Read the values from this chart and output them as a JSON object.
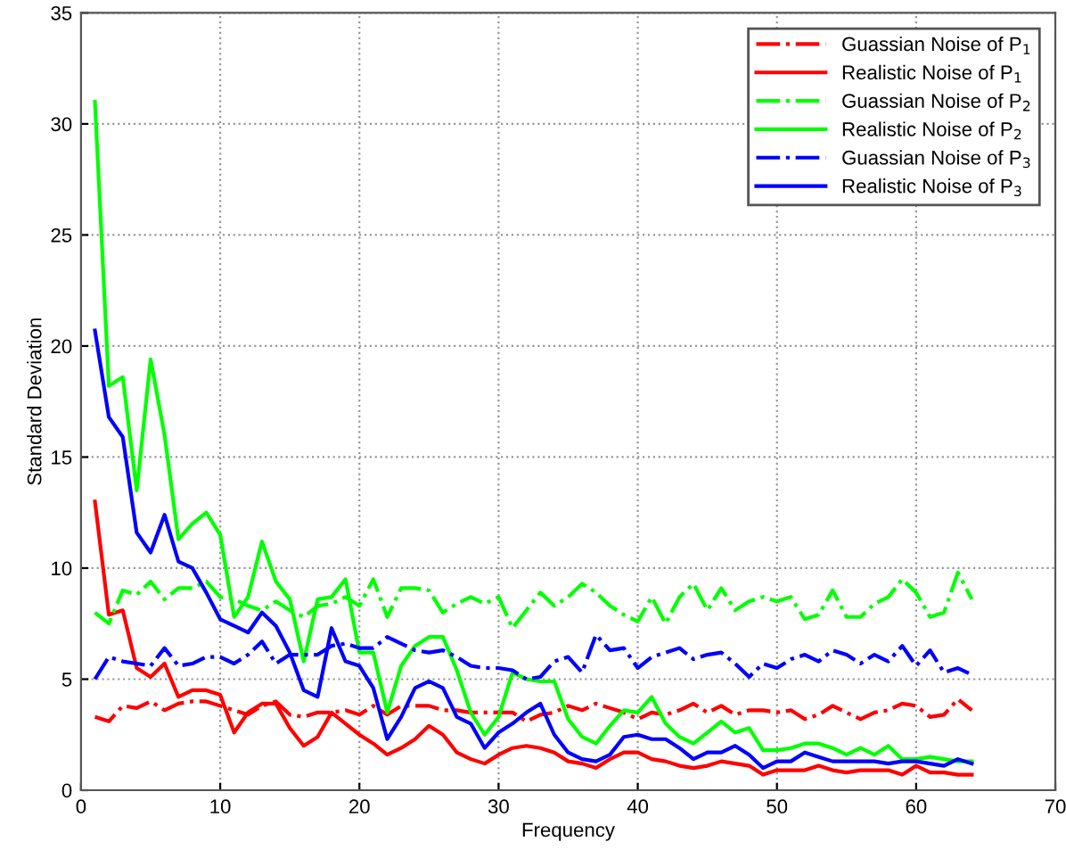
{
  "chart_data": {
    "type": "line",
    "xlabel": "Frequency",
    "ylabel": "Standard Deviation",
    "x": [
      1,
      2,
      3,
      4,
      5,
      6,
      7,
      8,
      9,
      10,
      11,
      12,
      13,
      14,
      15,
      16,
      17,
      18,
      19,
      20,
      21,
      22,
      23,
      24,
      25,
      26,
      27,
      28,
      29,
      30,
      31,
      32,
      33,
      34,
      35,
      36,
      37,
      38,
      39,
      40,
      41,
      42,
      43,
      44,
      45,
      46,
      47,
      48,
      49,
      50,
      51,
      52,
      53,
      54,
      55,
      56,
      57,
      58,
      59,
      60,
      61,
      62,
      63,
      64
    ],
    "xlim": [
      0,
      70
    ],
    "xticks": [
      0,
      10,
      20,
      30,
      40,
      50,
      60,
      70
    ],
    "ylim": [
      0,
      35
    ],
    "yticks": [
      0,
      5,
      10,
      15,
      20,
      25,
      30,
      35
    ],
    "grid": true,
    "legend": "top right",
    "marker": "none",
    "series": [
      {
        "name": "Guassian Noise of P$_{1}$",
        "color": "#ff0000",
        "line_style": "dashdot",
        "values": [
          3.3,
          3.1,
          3.8,
          3.7,
          4.0,
          3.6,
          3.9,
          4.0,
          4.0,
          3.8,
          3.6,
          3.4,
          3.8,
          4.0,
          3.4,
          3.3,
          3.5,
          3.5,
          3.6,
          3.4,
          3.8,
          3.4,
          3.8,
          3.8,
          3.8,
          3.6,
          3.6,
          3.5,
          3.5,
          3.5,
          3.5,
          3.1,
          3.4,
          3.5,
          3.8,
          3.6,
          3.9,
          3.7,
          3.5,
          3.2,
          3.5,
          3.4,
          3.6,
          3.9,
          3.5,
          3.8,
          3.4,
          3.6,
          3.6,
          3.5,
          3.6,
          3.2,
          3.4,
          3.8,
          3.5,
          3.2,
          3.5,
          3.6,
          3.9,
          3.8,
          3.3,
          3.4,
          4.1,
          3.6
        ]
      },
      {
        "name": "Realistic Noise of P$_{1}$",
        "color": "#ff0000",
        "line_style": "solid",
        "values": [
          13.0,
          7.9,
          8.1,
          5.5,
          5.1,
          5.7,
          4.2,
          4.5,
          4.5,
          4.3,
          2.6,
          3.5,
          3.9,
          3.9,
          2.8,
          2.0,
          2.4,
          3.5,
          3.0,
          2.5,
          2.1,
          1.6,
          1.9,
          2.3,
          2.9,
          2.5,
          1.7,
          1.4,
          1.2,
          1.6,
          1.9,
          2.0,
          1.9,
          1.7,
          1.3,
          1.2,
          1.0,
          1.4,
          1.7,
          1.7,
          1.4,
          1.3,
          1.1,
          1.0,
          1.1,
          1.3,
          1.2,
          1.1,
          0.7,
          0.9,
          0.9,
          0.9,
          1.1,
          0.9,
          0.8,
          0.9,
          0.9,
          0.9,
          0.7,
          1.1,
          0.8,
          0.8,
          0.7,
          0.7
        ]
      },
      {
        "name": "Guassian Noise of P$_{2}$",
        "color": "#00ff00",
        "line_style": "dashdot",
        "values": [
          8.0,
          7.5,
          9.0,
          8.8,
          9.4,
          8.6,
          9.1,
          9.1,
          9.4,
          8.7,
          8.6,
          8.3,
          8.1,
          8.5,
          8.1,
          7.8,
          8.3,
          8.4,
          8.7,
          8.3,
          9.5,
          7.8,
          9.1,
          9.1,
          9.0,
          8.0,
          8.4,
          8.7,
          8.4,
          8.7,
          7.3,
          8.1,
          8.9,
          8.3,
          8.7,
          9.3,
          8.9,
          8.3,
          7.9,
          7.6,
          8.7,
          7.5,
          8.7,
          9.3,
          8.1,
          9.1,
          8.1,
          8.5,
          8.7,
          8.5,
          8.7,
          7.7,
          7.9,
          9.0,
          7.8,
          7.8,
          8.4,
          8.7,
          9.5,
          8.9,
          7.8,
          8.0,
          9.8,
          8.6
        ]
      },
      {
        "name": "Realistic Noise of P$_{2}$",
        "color": "#00ff00",
        "line_style": "solid",
        "values": [
          31.0,
          18.2,
          18.6,
          13.5,
          19.4,
          16.0,
          11.3,
          12.0,
          12.5,
          11.5,
          7.8,
          8.7,
          11.2,
          9.4,
          8.6,
          5.8,
          8.6,
          8.7,
          9.5,
          6.2,
          6.2,
          3.5,
          5.6,
          6.5,
          6.9,
          6.9,
          5.4,
          3.5,
          2.5,
          3.3,
          5.3,
          5.0,
          4.9,
          4.9,
          3.2,
          2.4,
          2.1,
          2.9,
          3.6,
          3.5,
          4.2,
          3.0,
          2.4,
          2.1,
          2.6,
          3.1,
          2.6,
          2.8,
          1.8,
          1.8,
          1.9,
          2.1,
          2.1,
          1.9,
          1.6,
          1.9,
          1.6,
          2.0,
          1.4,
          1.4,
          1.5,
          1.4,
          1.3,
          1.3
        ]
      },
      {
        "name": "Guassian Noise of P$_{3}$",
        "color": "#0000ff",
        "line_style": "dashdot",
        "values": [
          5.0,
          6.0,
          5.8,
          5.7,
          5.6,
          6.4,
          5.6,
          5.7,
          6.0,
          6.0,
          5.7,
          6.1,
          6.7,
          5.7,
          6.1,
          6.1,
          6.1,
          6.5,
          6.6,
          6.4,
          6.4,
          6.9,
          6.6,
          6.3,
          6.2,
          6.3,
          6.0,
          5.6,
          5.5,
          5.5,
          5.4,
          5.0,
          5.1,
          5.8,
          6.0,
          5.3,
          7.0,
          6.3,
          6.4,
          5.5,
          6.0,
          6.2,
          6.4,
          5.9,
          6.1,
          6.2,
          5.7,
          5.1,
          5.7,
          5.5,
          5.9,
          6.1,
          5.8,
          6.3,
          6.1,
          5.7,
          6.1,
          5.8,
          6.5,
          5.6,
          6.3,
          5.3,
          5.5,
          5.2
        ]
      },
      {
        "name": "Realistic Noise of P$_{3}$",
        "color": "#0000ff",
        "line_style": "solid",
        "values": [
          20.7,
          16.8,
          15.9,
          11.6,
          10.7,
          12.4,
          10.3,
          10.0,
          8.9,
          7.7,
          7.4,
          7.1,
          8.0,
          7.4,
          6.2,
          4.5,
          4.2,
          7.3,
          5.8,
          5.6,
          4.6,
          2.3,
          3.3,
          4.6,
          4.9,
          4.6,
          3.3,
          3.0,
          1.9,
          2.6,
          3.0,
          3.5,
          3.9,
          2.5,
          1.7,
          1.4,
          1.3,
          1.6,
          2.4,
          2.5,
          2.3,
          2.3,
          1.9,
          1.4,
          1.7,
          1.7,
          2.0,
          1.6,
          1.0,
          1.3,
          1.3,
          1.7,
          1.5,
          1.3,
          1.3,
          1.3,
          1.3,
          1.2,
          1.3,
          1.3,
          1.2,
          1.1,
          1.4,
          1.2
        ]
      }
    ]
  }
}
